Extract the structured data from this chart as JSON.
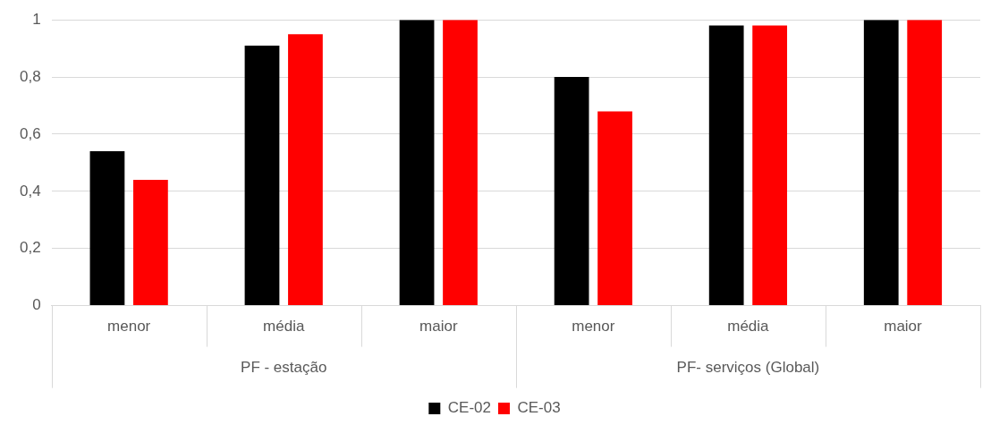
{
  "chart_data": {
    "type": "bar",
    "categories": [
      "menor",
      "média",
      "maior",
      "menor",
      "média",
      "maior"
    ],
    "series": [
      {
        "name": "CE-02",
        "color": "#000000",
        "values": [
          0.54,
          0.91,
          1,
          0.8,
          0.98,
          1
        ]
      },
      {
        "name": "CE-03",
        "color": "#ff0000",
        "values": [
          0.44,
          0.95,
          1,
          0.68,
          0.98,
          1
        ]
      }
    ],
    "ylim": [
      0,
      1
    ],
    "yticks": [
      0,
      {
        "value": 0.2,
        "label": "0,2"
      },
      {
        "value": 0.4,
        "label": "0,4"
      },
      {
        "value": 0.6,
        "label": "0,6"
      },
      {
        "value": 0.8,
        "label": "0,8"
      },
      1
    ],
    "grid": "y",
    "legend": "bottom",
    "annotations": [
      "PF - estação",
      "PF- serviços (Global)"
    ]
  }
}
